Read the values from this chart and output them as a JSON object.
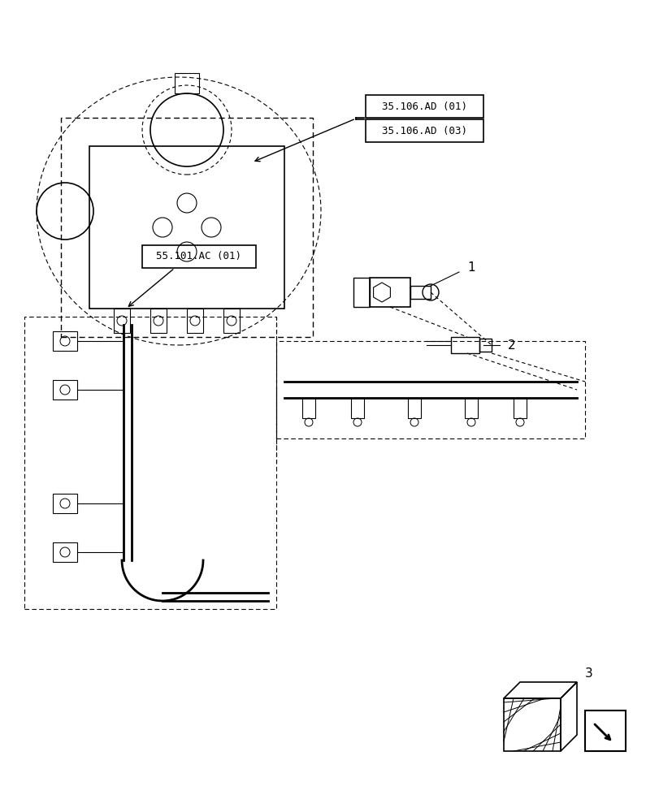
{
  "title": "",
  "background_color": "#ffffff",
  "line_color": "#000000",
  "label1": "35.106.AD (01)",
  "label2": "35.106.AD (03)",
  "label3": "55.101.AC (01)",
  "part_number1": "1",
  "part_number2": "2",
  "part_number3": "3",
  "fig_width": 8.12,
  "fig_height": 10.0,
  "dpi": 100
}
